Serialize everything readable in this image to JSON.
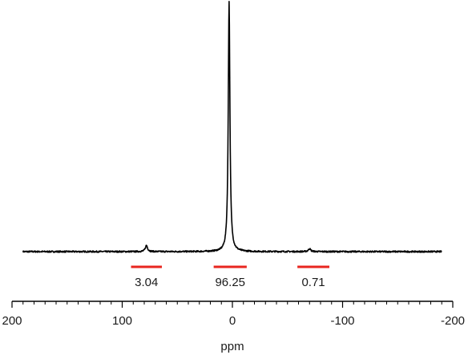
{
  "chart_data": {
    "type": "line",
    "title": "",
    "xlabel": "ppm",
    "ylabel": "",
    "xlim": [
      200,
      -200
    ],
    "x_reversed": true,
    "ylim": [
      0,
      1
    ],
    "grid": false,
    "legend": "none",
    "x_ticks": [
      200,
      100,
      0,
      -100,
      -200
    ],
    "x_tick_labels": [
      "200",
      "100",
      "0",
      "-100",
      "-200"
    ],
    "x_minor_tick_step": 10,
    "line_color": "#000000",
    "integral_color": "#e8261f",
    "series": [
      {
        "peaks": [
          {
            "center": 78,
            "height": 0.025,
            "width": 1.2
          },
          {
            "center": 3,
            "height": 1.0,
            "width": 0.9
          },
          {
            "center": -70,
            "height": 0.012,
            "width": 1.2
          }
        ]
      }
    ],
    "integrals": [
      {
        "x1": 92,
        "x2": 64,
        "label": "3.04"
      },
      {
        "x1": 17,
        "x2": -13,
        "label": "96.25"
      },
      {
        "x1": -59,
        "x2": -88,
        "label": "0.71"
      }
    ]
  }
}
